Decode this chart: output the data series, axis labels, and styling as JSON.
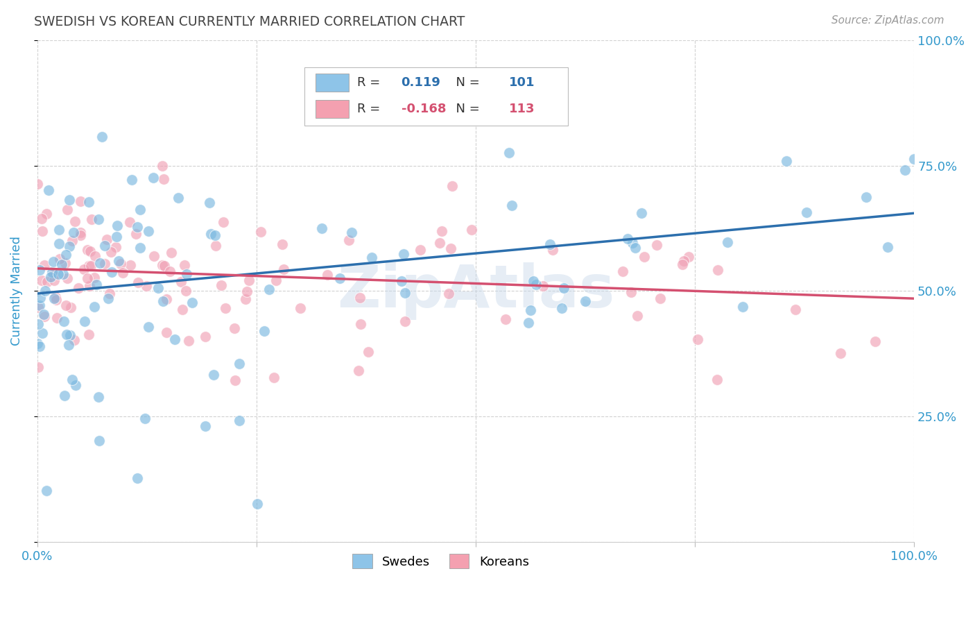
{
  "title": "SWEDISH VS KOREAN CURRENTLY MARRIED CORRELATION CHART",
  "source": "Source: ZipAtlas.com",
  "ylabel": "Currently Married",
  "blue_color": "#8ec4e8",
  "blue_scatter_color": "#7ab8e0",
  "pink_color": "#f4a0b0",
  "pink_scatter_color": "#f0a0b5",
  "blue_line_color": "#2c6fad",
  "pink_line_color": "#d45070",
  "blue_R": 0.119,
  "blue_N": 101,
  "blue_intercept": 0.495,
  "blue_slope": 0.16,
  "pink_R": -0.168,
  "pink_N": 113,
  "pink_intercept": 0.545,
  "pink_slope": -0.06,
  "title_color": "#444444",
  "source_color": "#999999",
  "axis_label_color": "#3399cc",
  "right_tick_color": "#3399cc",
  "grid_color": "#cccccc",
  "background_color": "#ffffff",
  "legend_label_color": "#333333",
  "watermark_color": "#c8d8ea",
  "watermark_alpha": 0.45
}
